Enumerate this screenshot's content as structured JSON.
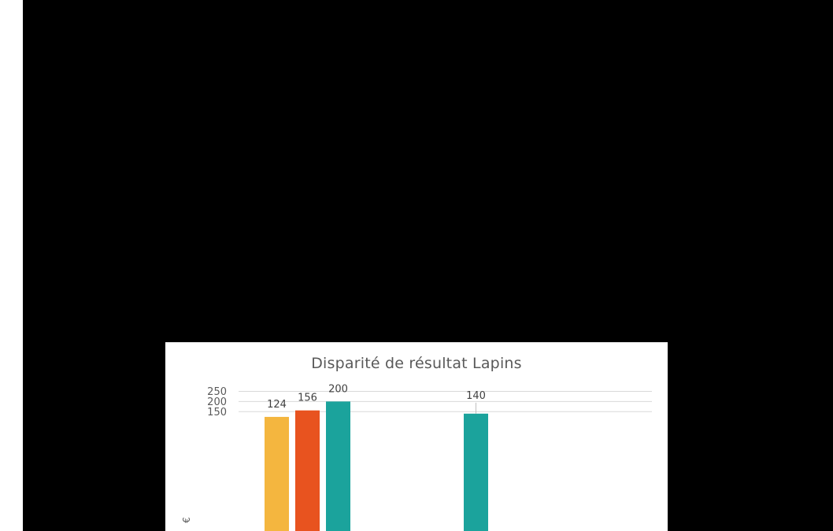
{
  "chart_data": {
    "type": "bar",
    "title": "Disparité de résultat Lapins",
    "ylabel": "€",
    "xlabel": "",
    "ylim": [
      0,
      250
    ],
    "yticks": [
      150,
      200,
      250
    ],
    "grid": true,
    "series": [
      {
        "color": "#F4B63F",
        "values": [
          124
        ]
      },
      {
        "color": "#E8531F",
        "values": [
          156
        ]
      },
      {
        "color": "#1BA39C",
        "values": [
          200,
          140
        ]
      }
    ]
  }
}
